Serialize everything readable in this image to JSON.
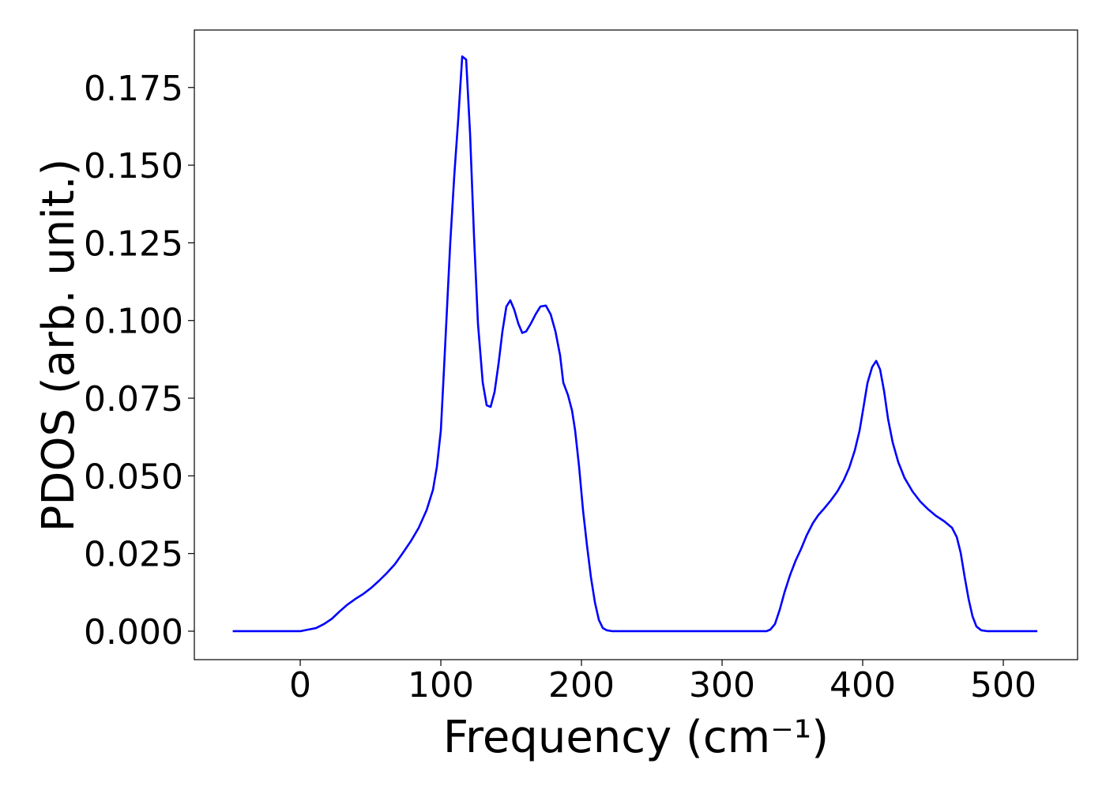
{
  "chart_data": {
    "type": "line",
    "xlabel": "Frequency (cm⁻¹)",
    "ylabel": "PDOS (arb. unit.)",
    "xlim": [
      -75.3,
      552.8
    ],
    "ylim": [
      -0.00916,
      0.1935
    ],
    "xticks": [
      0,
      100,
      200,
      300,
      400,
      500
    ],
    "yticks": [
      {
        "value": 0,
        "label": "0.000"
      },
      {
        "value": 0.025,
        "label": "0.025"
      },
      {
        "value": 0.05,
        "label": "0.050"
      },
      {
        "value": 0.075,
        "label": "0.075"
      },
      {
        "value": 0.1,
        "label": "0.100"
      },
      {
        "value": 0.125,
        "label": "0.125"
      },
      {
        "value": 0.15,
        "label": "0.150"
      },
      {
        "value": 0.175,
        "label": "0.175"
      }
    ],
    "series": [
      {
        "color": "#0000ff",
        "x": [
          -48,
          -25,
          0,
          5.6,
          11.2,
          16.9,
          22.5,
          28.1,
          33.7,
          39.3,
          44.9,
          50.6,
          56.2,
          61.8,
          67.4,
          73,
          78.7,
          84.3,
          89.9,
          94.4,
          97.2,
          100,
          102.2,
          104.5,
          106.7,
          109.6,
          112.4,
          115.2,
          118,
          120.8,
          123.6,
          126.4,
          129.8,
          132.6,
          135.4,
          138.2,
          141,
          143.8,
          146.6,
          149.4,
          152.2,
          155.1,
          157.9,
          160.7,
          164,
          167.4,
          170.8,
          174.7,
          178.1,
          181.5,
          184.8,
          187.1,
          190.4,
          193.3,
          195.5,
          198.3,
          201.1,
          203.9,
          206.7,
          209.6,
          212.4,
          215.2,
          218,
          222,
          280,
          331.5,
          334.3,
          337.6,
          341,
          344.4,
          348.3,
          352.2,
          356.2,
          360.1,
          364.6,
          368.5,
          373,
          377.5,
          382,
          386.5,
          390.4,
          394.4,
          397.8,
          400.6,
          403.4,
          406.7,
          409.6,
          412.4,
          415.2,
          418,
          421.3,
          425.3,
          429.8,
          435.4,
          441,
          446.6,
          452.2,
          457.9,
          463.5,
          466.9,
          469.7,
          472.5,
          475.3,
          478.1,
          480.9,
          484.3,
          488.8,
          524.2
        ],
        "values": [
          0,
          0,
          0,
          0.0005,
          0.001,
          0.0023,
          0.004,
          0.0064,
          0.0086,
          0.0104,
          0.012,
          0.014,
          0.0163,
          0.0188,
          0.0216,
          0.0252,
          0.029,
          0.0333,
          0.039,
          0.0455,
          0.053,
          0.0646,
          0.084,
          0.105,
          0.125,
          0.147,
          0.165,
          0.185,
          0.184,
          0.16,
          0.127,
          0.099,
          0.08,
          0.0727,
          0.0722,
          0.077,
          0.086,
          0.0965,
          0.1045,
          0.1065,
          0.1035,
          0.099,
          0.096,
          0.0965,
          0.099,
          0.102,
          0.1045,
          0.1048,
          0.102,
          0.0965,
          0.0888,
          0.08,
          0.076,
          0.071,
          0.0646,
          0.053,
          0.039,
          0.0277,
          0.0175,
          0.0092,
          0.0036,
          0.001,
          0.0003,
          0,
          0,
          0,
          0.0005,
          0.0023,
          0.0069,
          0.0125,
          0.018,
          0.0226,
          0.0265,
          0.0308,
          0.0348,
          0.0374,
          0.0397,
          0.0422,
          0.045,
          0.0486,
          0.0526,
          0.0582,
          0.0646,
          0.0722,
          0.0799,
          0.085,
          0.087,
          0.0842,
          0.0773,
          0.0684,
          0.0608,
          0.0544,
          0.0493,
          0.045,
          0.0417,
          0.0392,
          0.0371,
          0.0354,
          0.0333,
          0.0303,
          0.0252,
          0.0175,
          0.0104,
          0.0048,
          0.0015,
          0.0003,
          0,
          0
        ]
      }
    ]
  }
}
